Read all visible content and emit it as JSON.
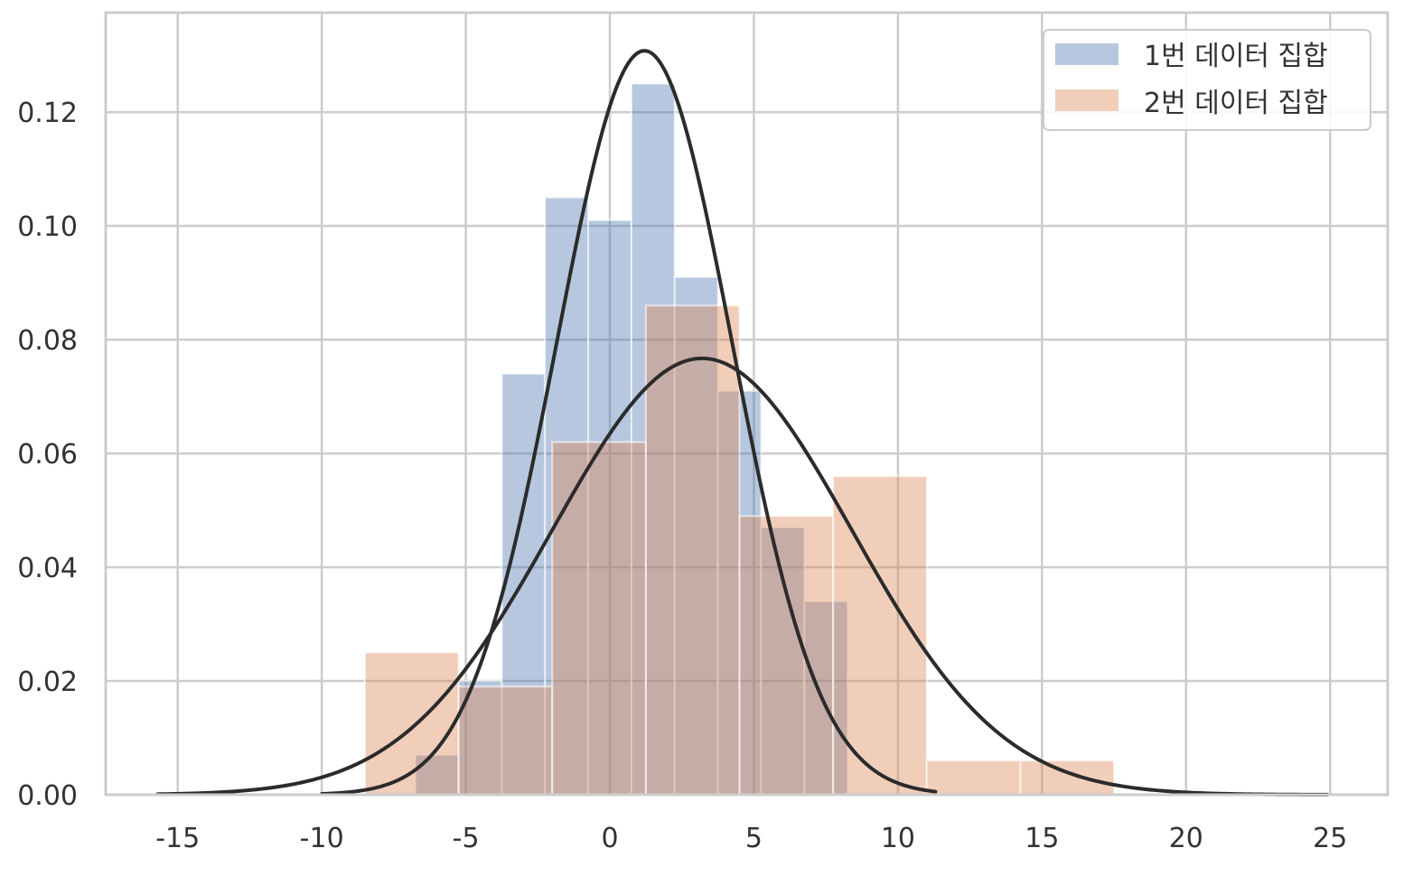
{
  "chart_data": {
    "type": "bar",
    "title": "",
    "xlabel": "",
    "ylabel": "",
    "xlim": [
      -17.5,
      27
    ],
    "ylim": [
      0,
      0.1375
    ],
    "grid": true,
    "legend_placement": "top-right",
    "x_ticks": [
      -15,
      -10,
      -5,
      0,
      5,
      10,
      15,
      20,
      25
    ],
    "x_tick_labels": [
      "-15",
      "-10",
      "-5",
      "0",
      "5",
      "10",
      "15",
      "20",
      "25"
    ],
    "y_ticks": [
      0.0,
      0.02,
      0.04,
      0.06,
      0.08,
      0.1,
      0.12
    ],
    "y_tick_labels": [
      "0.00",
      "0.02",
      "0.04",
      "0.06",
      "0.08",
      "0.10",
      "0.12"
    ],
    "series": [
      {
        "name": "1번 데이터 집합",
        "color": "#4c72b0",
        "bins": [
          {
            "x0": -6.75,
            "x1": -5.25,
            "value": 0.007
          },
          {
            "x0": -5.25,
            "x1": -3.75,
            "value": 0.02
          },
          {
            "x0": -3.75,
            "x1": -2.25,
            "value": 0.074
          },
          {
            "x0": -2.25,
            "x1": -0.75,
            "value": 0.105
          },
          {
            "x0": -0.75,
            "x1": 0.75,
            "value": 0.101
          },
          {
            "x0": 0.75,
            "x1": 2.25,
            "value": 0.125
          },
          {
            "x0": 2.25,
            "x1": 3.75,
            "value": 0.091
          },
          {
            "x0": 3.75,
            "x1": 5.25,
            "value": 0.071
          },
          {
            "x0": 5.25,
            "x1": 6.75,
            "value": 0.047
          },
          {
            "x0": 6.75,
            "x1": 8.25,
            "value": 0.034
          }
        ],
        "fit_curve": {
          "mean": 1.2,
          "std": 3.05,
          "x_range": [
            -10,
            11.3
          ]
        }
      },
      {
        "name": "2번 데이터 집합",
        "color": "#dd8452",
        "bins": [
          {
            "x0": -8.5,
            "x1": -5.25,
            "value": 0.025
          },
          {
            "x0": -5.25,
            "x1": -2.0,
            "value": 0.019
          },
          {
            "x0": -2.0,
            "x1": 1.25,
            "value": 0.062
          },
          {
            "x0": 1.25,
            "x1": 4.5,
            "value": 0.086
          },
          {
            "x0": 4.5,
            "x1": 7.75,
            "value": 0.049
          },
          {
            "x0": 7.75,
            "x1": 11.0,
            "value": 0.056
          },
          {
            "x0": 11.0,
            "x1": 14.25,
            "value": 0.006
          },
          {
            "x0": 14.25,
            "x1": 17.5,
            "value": 0.006
          }
        ],
        "fit_curve": {
          "mean": 3.2,
          "std": 5.2,
          "x_range": [
            -15.7,
            24.9
          ]
        }
      }
    ]
  },
  "colors": {
    "grid": "#cccccc",
    "frame": "#cccccc",
    "curve": "#2b2b2b",
    "text": "#333333"
  }
}
